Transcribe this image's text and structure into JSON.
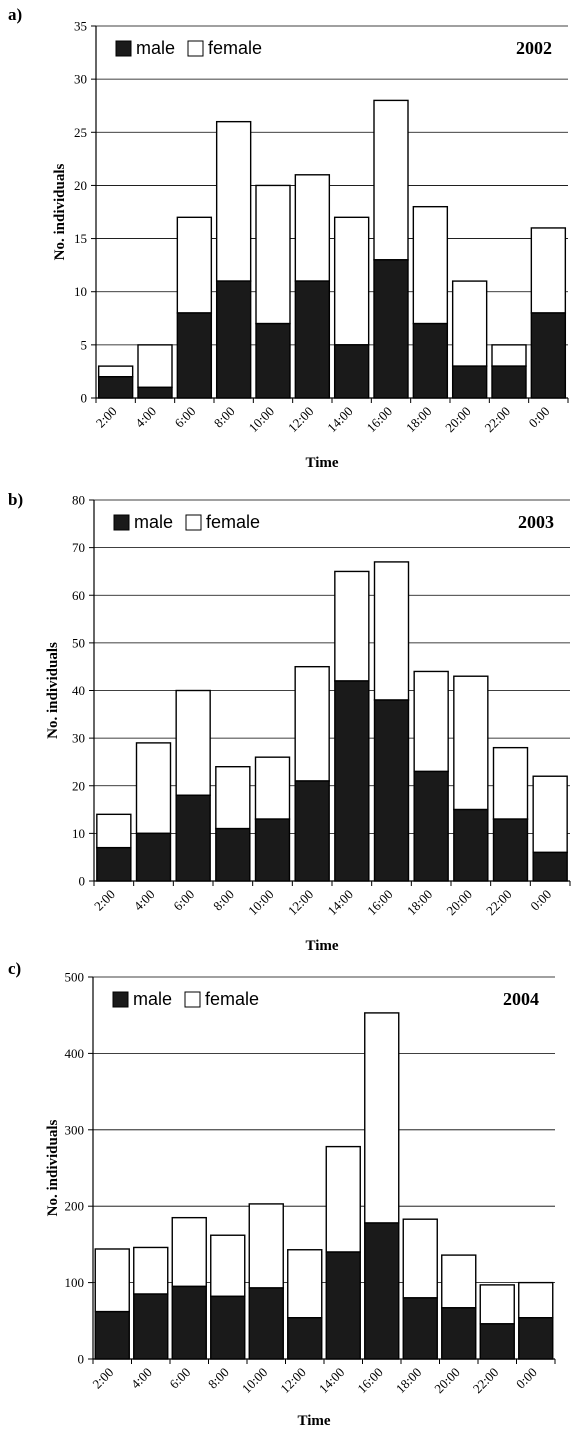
{
  "chart_data": [
    {
      "type": "bar",
      "panel_label": "a)",
      "year": "2002",
      "stacked": true,
      "xlabel": "Time",
      "ylabel": "No. individuals",
      "ylim": [
        0,
        35
      ],
      "yticks": [
        0,
        5,
        10,
        15,
        20,
        25,
        30,
        35
      ],
      "grid": true,
      "legend_position": "top-left",
      "categories": [
        "2:00",
        "4:00",
        "6:00",
        "8:00",
        "10:00",
        "12:00",
        "14:00",
        "16:00",
        "18:00",
        "20:00",
        "22:00",
        "0:00"
      ],
      "series": [
        {
          "name": "male",
          "color": "#1a1a1a",
          "values": [
            2,
            1,
            8,
            11,
            7,
            11,
            5,
            13,
            7,
            3,
            3,
            8
          ]
        },
        {
          "name": "female",
          "color": "#ffffff",
          "values": [
            1,
            4,
            9,
            15,
            13,
            10,
            12,
            15,
            11,
            8,
            2,
            8
          ]
        }
      ]
    },
    {
      "type": "bar",
      "panel_label": "b)",
      "year": "2003",
      "stacked": true,
      "xlabel": "Time",
      "ylabel": "No. individuals",
      "ylim": [
        0,
        80
      ],
      "yticks": [
        0,
        10,
        20,
        30,
        40,
        50,
        60,
        70,
        80
      ],
      "grid": true,
      "legend_position": "top-left",
      "categories": [
        "2:00",
        "4:00",
        "6:00",
        "8:00",
        "10:00",
        "12:00",
        "14:00",
        "16:00",
        "18:00",
        "20:00",
        "22:00",
        "0:00"
      ],
      "series": [
        {
          "name": "male",
          "color": "#1a1a1a",
          "values": [
            7,
            10,
            18,
            11,
            13,
            21,
            42,
            38,
            23,
            15,
            13,
            6
          ]
        },
        {
          "name": "female",
          "color": "#ffffff",
          "values": [
            7,
            19,
            22,
            13,
            13,
            24,
            23,
            29,
            21,
            28,
            15,
            16
          ]
        }
      ]
    },
    {
      "type": "bar",
      "panel_label": "c)",
      "year": "2004",
      "stacked": true,
      "xlabel": "Time",
      "ylabel": "No. individuals",
      "ylim": [
        0,
        500
      ],
      "yticks": [
        0,
        100,
        200,
        300,
        400,
        500
      ],
      "grid": true,
      "legend_position": "top-left",
      "categories": [
        "2:00",
        "4:00",
        "6:00",
        "8:00",
        "10:00",
        "12:00",
        "14:00",
        "16:00",
        "18:00",
        "20:00",
        "22:00",
        "0:00"
      ],
      "series": [
        {
          "name": "male",
          "color": "#1a1a1a",
          "values": [
            62,
            85,
            95,
            82,
            93,
            54,
            140,
            178,
            80,
            67,
            46,
            54
          ]
        },
        {
          "name": "female",
          "color": "#ffffff",
          "values": [
            82,
            61,
            90,
            80,
            110,
            89,
            138,
            275,
            103,
            69,
            51,
            46
          ]
        }
      ]
    }
  ]
}
